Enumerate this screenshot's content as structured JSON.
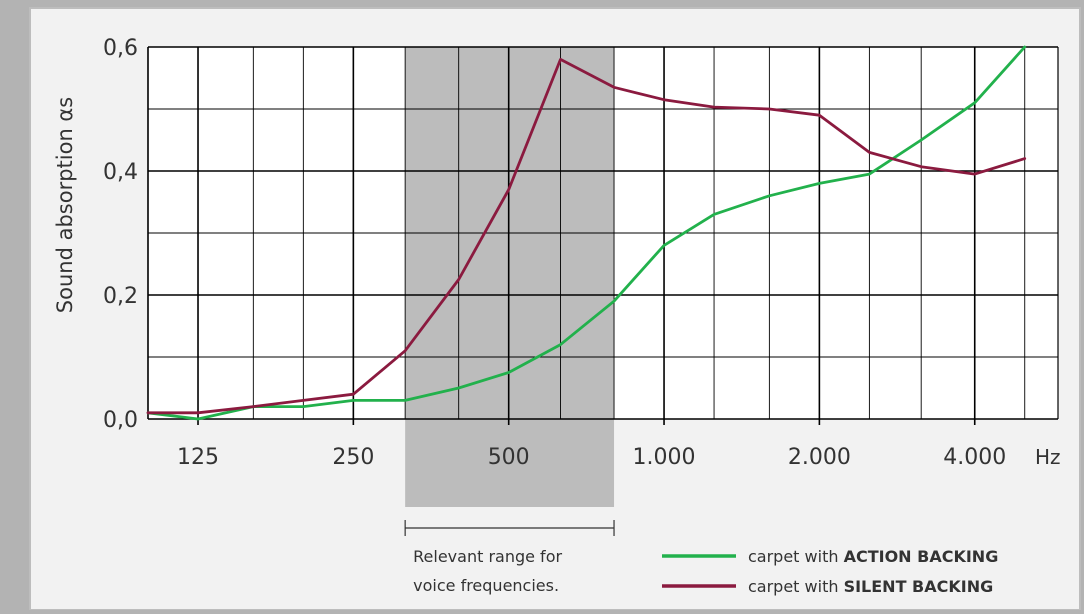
{
  "chart_data": {
    "type": "line",
    "x_axis": {
      "scale": "log",
      "range": [
        100,
        5800
      ],
      "ticks": [
        {
          "value": 125,
          "label": "125"
        },
        {
          "value": 250,
          "label": "250"
        },
        {
          "value": 500,
          "label": "500"
        },
        {
          "value": 1000,
          "label": "1.000"
        },
        {
          "value": 2000,
          "label": "2.000"
        },
        {
          "value": 4000,
          "label": "4.000"
        }
      ],
      "unit": "Hz",
      "minor_gridlines": [
        100,
        160,
        200,
        315,
        400,
        630,
        800,
        1250,
        1600,
        2500,
        3150,
        5000
      ]
    },
    "y_axis": {
      "label": "Sound absorption αs",
      "range": [
        0,
        0.6
      ],
      "ticks": [
        {
          "value": 0,
          "label": "0,0"
        },
        {
          "value": 0.2,
          "label": "0,2"
        },
        {
          "value": 0.4,
          "label": "0,4"
        },
        {
          "value": 0.6,
          "label": "0,6"
        }
      ],
      "minor_step": 0.1
    },
    "grid": true,
    "highlight_band": {
      "x_range": [
        315,
        800
      ],
      "bracket_label": [
        "Relevant range for",
        "voice frequencies."
      ]
    },
    "legend": {
      "placement": "bottom-right",
      "entries": [
        {
          "prefix": "carpet with ",
          "bold": "ACTION BACKING",
          "color": "#22b14c"
        },
        {
          "prefix": "carpet with ",
          "bold": "SILENT BACKING",
          "color": "#8b1a3f"
        }
      ]
    },
    "series": [
      {
        "name": "carpet with ACTION BACKING",
        "color": "#22b14c",
        "points": [
          [
            100,
            0.01
          ],
          [
            125,
            0.0
          ],
          [
            160,
            0.02
          ],
          [
            200,
            0.02
          ],
          [
            250,
            0.03
          ],
          [
            315,
            0.03
          ],
          [
            400,
            0.05
          ],
          [
            500,
            0.075
          ],
          [
            630,
            0.12
          ],
          [
            800,
            0.19
          ],
          [
            1000,
            0.28
          ],
          [
            1250,
            0.33
          ],
          [
            1600,
            0.36
          ],
          [
            2000,
            0.38
          ],
          [
            2500,
            0.395
          ],
          [
            3150,
            0.45
          ],
          [
            4000,
            0.51
          ],
          [
            5000,
            0.6
          ]
        ]
      },
      {
        "name": "carpet with SILENT BACKING",
        "color": "#8b1a3f",
        "points": [
          [
            100,
            0.01
          ],
          [
            125,
            0.01
          ],
          [
            160,
            0.02
          ],
          [
            200,
            0.03
          ],
          [
            250,
            0.04
          ],
          [
            315,
            0.11
          ],
          [
            400,
            0.225
          ],
          [
            500,
            0.37
          ],
          [
            630,
            0.58
          ],
          [
            800,
            0.535
          ],
          [
            1000,
            0.515
          ],
          [
            1250,
            0.503
          ],
          [
            1600,
            0.5
          ],
          [
            2000,
            0.49
          ],
          [
            2500,
            0.43
          ],
          [
            3150,
            0.407
          ],
          [
            4000,
            0.395
          ],
          [
            5000,
            0.42
          ]
        ]
      }
    ]
  }
}
